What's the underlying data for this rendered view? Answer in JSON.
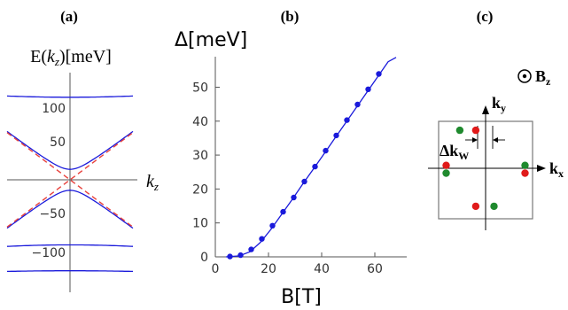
{
  "panel_labels": [
    "(a)",
    "(b)",
    "(c)"
  ],
  "panel_a": {
    "ylabel_prefix": "E(",
    "ylabel_var": "k",
    "ylabel_sub": "z",
    "ylabel_suffix": ")[meV]",
    "xlabel_var": "k",
    "xlabel_sub": "z",
    "yticks": [
      "100",
      "50",
      "−50",
      "−100"
    ]
  },
  "panel_b_text": {
    "ylabel": "Δ[meV]",
    "xlabel": "B[T]",
    "xticks": [
      "0",
      "20",
      "40",
      "60"
    ],
    "yticks": [
      "0",
      "10",
      "20",
      "30",
      "40",
      "50"
    ]
  },
  "panel_c": {
    "ky_main": "k",
    "ky_sub": "y",
    "kx_main": "k",
    "kx_sub": "x",
    "bz_main": "B",
    "bz_sub": "z",
    "dk_main": "Δk",
    "dk_sub": "W"
  },
  "colors": {
    "curve": "#1a1adb",
    "dash": "#e8413c",
    "red_dot": "#e01a1a",
    "green_dot": "#1f8a2e",
    "axis": "#555555"
  },
  "chart_data": [
    {
      "type": "line",
      "panel": "(a)",
      "title": "",
      "ylabel": "E(kz)[meV]",
      "xlabel": "kz",
      "yticks": [
        100,
        50,
        -50,
        -100
      ],
      "ylim": [
        -130,
        140
      ],
      "series": [
        {
          "style": "solid",
          "energy_at_kz0": [
            118,
            15,
            -15,
            -93,
            -130
          ]
        },
        {
          "style": "dashed",
          "description_values": {
            "slope_sign": [
              "+",
              "-"
            ],
            "energy_at_kz0": [
              0,
              0
            ]
          }
        }
      ]
    },
    {
      "type": "line",
      "panel": "(b)",
      "title": "",
      "xlabel": "B[T]",
      "ylabel": "Δ[meV]",
      "xlim": [
        0,
        72
      ],
      "ylim": [
        0,
        59
      ],
      "xticks": [
        0,
        20,
        40,
        60
      ],
      "yticks": [
        0,
        10,
        20,
        30,
        40,
        50
      ],
      "points": [
        [
          5.5,
          0.1
        ],
        [
          9.5,
          0.5
        ],
        [
          13.5,
          2.2
        ],
        [
          17.5,
          5.3
        ],
        [
          21.5,
          9.2
        ],
        [
          25.5,
          13.3
        ],
        [
          29.5,
          17.5
        ],
        [
          33.5,
          22.2
        ],
        [
          37.5,
          26.6
        ],
        [
          41.5,
          31.3
        ],
        [
          45.5,
          35.8
        ],
        [
          49.5,
          40.3
        ],
        [
          53.5,
          44.9
        ],
        [
          57.5,
          49.4
        ],
        [
          61.5,
          53.9
        ]
      ],
      "curve": [
        [
          4,
          0
        ],
        [
          9,
          0.3
        ],
        [
          13,
          1.5
        ],
        [
          17,
          4.3
        ],
        [
          21,
          8.2
        ],
        [
          25,
          12.6
        ],
        [
          29,
          17
        ],
        [
          33,
          21.6
        ],
        [
          37,
          26
        ],
        [
          41,
          30.5
        ],
        [
          45,
          35
        ],
        [
          49,
          39.5
        ],
        [
          53,
          44
        ],
        [
          57,
          48.5
        ],
        [
          61,
          53
        ],
        [
          65,
          57.5
        ],
        [
          68,
          58.8
        ]
      ]
    },
    {
      "type": "scatter",
      "panel": "(c)",
      "title": "",
      "xlabel": "kx",
      "ylabel": "ky",
      "xlim": [
        -1,
        1
      ],
      "ylim": [
        -1,
        1
      ],
      "red_points": [
        [
          -0.21,
          0.78
        ],
        [
          0.84,
          -0.1
        ],
        [
          -0.84,
          0.06
        ],
        [
          -0.21,
          -0.78
        ]
      ],
      "green_points": [
        [
          -0.55,
          0.78
        ],
        [
          0.84,
          0.06
        ],
        [
          -0.84,
          -0.1
        ],
        [
          0.18,
          -0.78
        ]
      ]
    }
  ]
}
